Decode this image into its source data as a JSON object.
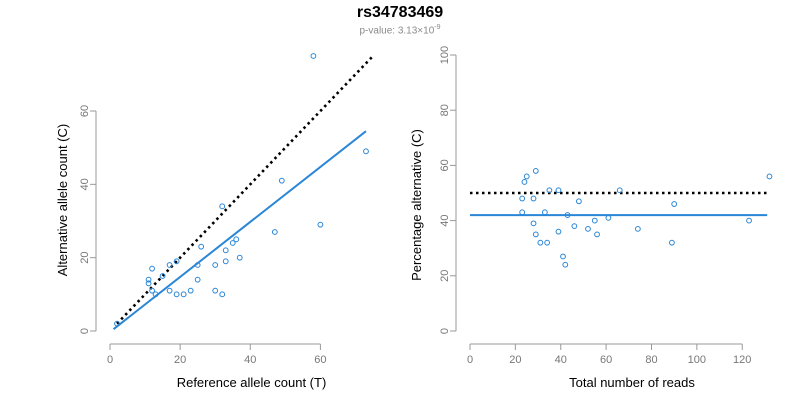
{
  "title": "rs34783469",
  "subtitle": {
    "label": "p-value: 3.13×10",
    "exponent": "-9"
  },
  "colors": {
    "points": "#2a86d6",
    "fit_line": "#2a86d6",
    "reference_line": "#000000",
    "axis": "#999999"
  },
  "chart_data": [
    {
      "type": "scatter",
      "xlabel": "Reference allele count (T)",
      "ylabel": "Alternative allele count (C)",
      "xlim": [
        0,
        75
      ],
      "ylim": [
        0,
        78
      ],
      "xticks": [
        0,
        20,
        40,
        60
      ],
      "yticks": [
        0,
        20,
        40,
        60
      ],
      "grid": false,
      "points": [
        {
          "x": 2,
          "y": 2
        },
        {
          "x": 11,
          "y": 13
        },
        {
          "x": 11,
          "y": 14
        },
        {
          "x": 12,
          "y": 11
        },
        {
          "x": 12,
          "y": 17
        },
        {
          "x": 13,
          "y": 10
        },
        {
          "x": 15,
          "y": 15
        },
        {
          "x": 17,
          "y": 11
        },
        {
          "x": 17,
          "y": 18
        },
        {
          "x": 19,
          "y": 10
        },
        {
          "x": 19,
          "y": 19
        },
        {
          "x": 21,
          "y": 10
        },
        {
          "x": 23,
          "y": 11
        },
        {
          "x": 25,
          "y": 14
        },
        {
          "x": 25,
          "y": 18
        },
        {
          "x": 26,
          "y": 23
        },
        {
          "x": 30,
          "y": 11
        },
        {
          "x": 30,
          "y": 18
        },
        {
          "x": 32,
          "y": 10
        },
        {
          "x": 32,
          "y": 34
        },
        {
          "x": 33,
          "y": 19
        },
        {
          "x": 33,
          "y": 22
        },
        {
          "x": 35,
          "y": 24
        },
        {
          "x": 36,
          "y": 25
        },
        {
          "x": 37,
          "y": 20
        },
        {
          "x": 47,
          "y": 27
        },
        {
          "x": 49,
          "y": 41
        },
        {
          "x": 58,
          "y": 75
        },
        {
          "x": 60,
          "y": 29
        },
        {
          "x": 73,
          "y": 49
        }
      ],
      "reference_line": {
        "style": "dotted",
        "x": [
          2,
          75
        ],
        "y": [
          2,
          75
        ]
      },
      "fit_line": {
        "style": "solid",
        "x": [
          1,
          73
        ],
        "y": [
          0.5,
          54.5
        ]
      }
    },
    {
      "type": "scatter",
      "xlabel": "Total number of reads",
      "ylabel": "Percentage alternative (C)",
      "xlim": [
        0,
        134
      ],
      "ylim": [
        0,
        100
      ],
      "xticks": [
        0,
        20,
        40,
        60,
        80,
        100,
        120
      ],
      "yticks": [
        0,
        20,
        40,
        60,
        80,
        100
      ],
      "grid": false,
      "points": [
        {
          "x": 23,
          "y": 48
        },
        {
          "x": 23,
          "y": 43
        },
        {
          "x": 24,
          "y": 54
        },
        {
          "x": 25,
          "y": 56
        },
        {
          "x": 28,
          "y": 39
        },
        {
          "x": 28,
          "y": 48
        },
        {
          "x": 29,
          "y": 58
        },
        {
          "x": 29,
          "y": 35
        },
        {
          "x": 31,
          "y": 32
        },
        {
          "x": 33,
          "y": 43
        },
        {
          "x": 34,
          "y": 32
        },
        {
          "x": 35,
          "y": 51
        },
        {
          "x": 39,
          "y": 51
        },
        {
          "x": 39,
          "y": 36
        },
        {
          "x": 41,
          "y": 27
        },
        {
          "x": 42,
          "y": 24
        },
        {
          "x": 43,
          "y": 42
        },
        {
          "x": 46,
          "y": 38
        },
        {
          "x": 48,
          "y": 47
        },
        {
          "x": 52,
          "y": 37
        },
        {
          "x": 55,
          "y": 40
        },
        {
          "x": 56,
          "y": 35
        },
        {
          "x": 61,
          "y": 41
        },
        {
          "x": 66,
          "y": 51
        },
        {
          "x": 74,
          "y": 37
        },
        {
          "x": 89,
          "y": 32
        },
        {
          "x": 90,
          "y": 46
        },
        {
          "x": 123,
          "y": 40
        },
        {
          "x": 132,
          "y": 56
        }
      ],
      "reference_line": {
        "style": "dotted",
        "x": [
          0,
          131
        ],
        "y": [
          50,
          50
        ]
      },
      "fit_line": {
        "style": "solid",
        "x": [
          0,
          131
        ],
        "y": [
          42,
          42
        ]
      }
    }
  ]
}
